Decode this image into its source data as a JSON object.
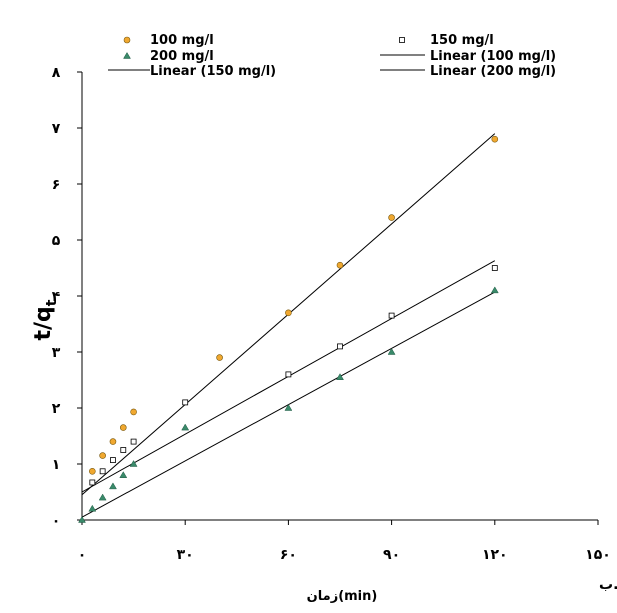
{
  "chart_data": {
    "type": "scatter",
    "title": "",
    "xlabel": "زمان(min)",
    "ylabel": "t/q",
    "ylabel_sub": "t",
    "corner_label": "ب.",
    "xlim": [
      0,
      150
    ],
    "ylim": [
      0,
      8
    ],
    "x_ticks": [
      0,
      30,
      60,
      90,
      120,
      150
    ],
    "x_tick_labels": [
      "۰",
      "۳۰",
      "۶۰",
      "۹۰",
      "۱۲۰",
      "۱۵۰"
    ],
    "y_ticks": [
      0,
      1,
      2,
      3,
      4,
      5,
      6,
      7,
      8
    ],
    "y_tick_labels": [
      "۰",
      "۱",
      "۲",
      "۳",
      "۴",
      "۵",
      "۶",
      "۷",
      "۸"
    ],
    "grid": false,
    "legend_position": "top",
    "series": [
      {
        "name": "100 mg/l",
        "marker": "circle",
        "color": "#f0a830",
        "x": [
          3,
          6,
          9,
          12,
          15,
          40,
          60,
          75,
          90,
          120
        ],
        "y": [
          0.87,
          1.15,
          1.4,
          1.65,
          1.93,
          2.9,
          3.7,
          4.55,
          5.4,
          6.8
        ]
      },
      {
        "name": "150 mg/l",
        "marker": "square",
        "color": "#ffffff",
        "x": [
          3,
          6,
          9,
          12,
          15,
          30,
          60,
          75,
          90,
          120
        ],
        "y": [
          0.67,
          0.87,
          1.07,
          1.25,
          1.4,
          2.1,
          2.6,
          3.1,
          3.65,
          4.5
        ]
      },
      {
        "name": "200 mg/l",
        "marker": "triangle",
        "color": "#3a8a6a",
        "x": [
          0,
          3,
          6,
          9,
          12,
          15,
          30,
          60,
          75,
          90,
          120
        ],
        "y": [
          0,
          0.2,
          0.4,
          0.6,
          0.8,
          1.0,
          1.65,
          2.0,
          2.55,
          3.0,
          4.1
        ]
      }
    ],
    "trendlines": [
      {
        "name": "Linear (100 mg/l)",
        "color": "#000000",
        "x": [
          0,
          120
        ],
        "y": [
          0.45,
          6.9
        ]
      },
      {
        "name": "Linear (150 mg/l)",
        "color": "#000000",
        "x": [
          0,
          120
        ],
        "y": [
          0.5,
          4.63
        ]
      },
      {
        "name": "Linear (200 mg/l)",
        "color": "#000000",
        "x": [
          0,
          120
        ],
        "y": [
          0.05,
          4.07
        ]
      }
    ]
  }
}
